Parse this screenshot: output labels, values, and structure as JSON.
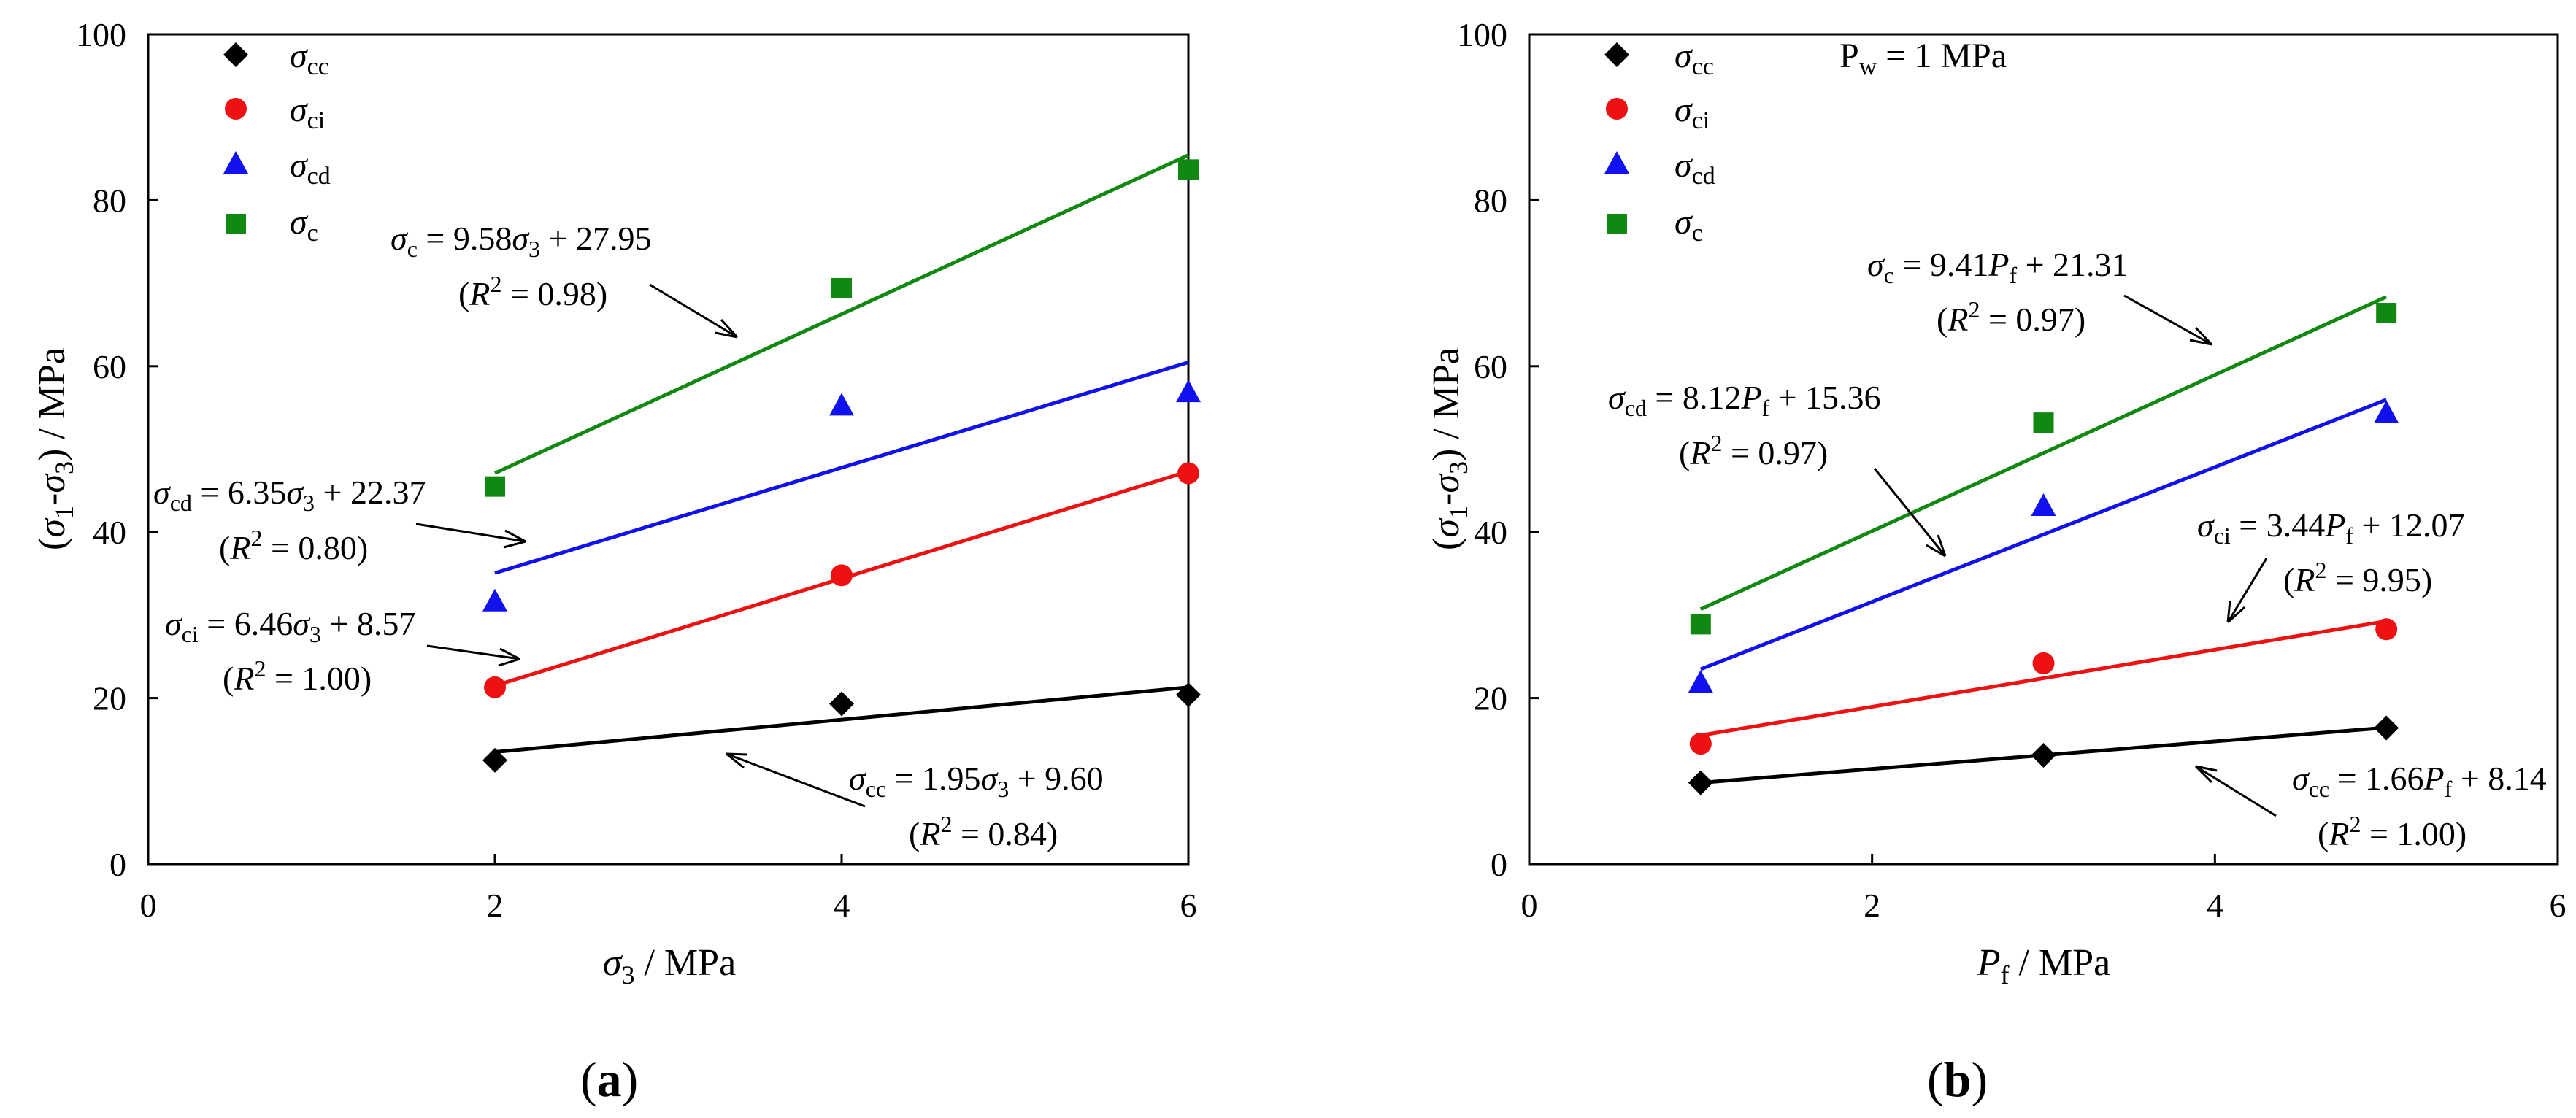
{
  "chart_data": [
    {
      "type": "scatter",
      "panel_label": "(a)",
      "xlabel": "σ3 / MPa",
      "ylabel": "(σ1-σ3) / MPa",
      "xlim": [
        0,
        6
      ],
      "ylim": [
        0,
        100
      ],
      "xticks": [
        0,
        2,
        4,
        6
      ],
      "yticks": [
        0,
        20,
        40,
        60,
        80,
        100
      ],
      "note": "",
      "legend_position": "top-left",
      "series": [
        {
          "key": "cc",
          "name": "σcc",
          "marker": "diamond",
          "color": "#000000",
          "x": [
            2,
            4,
            6
          ],
          "y": [
            12.5,
            19.3,
            20.4
          ],
          "fit": {
            "slope": 1.95,
            "intercept": 9.6,
            "x_range": [
              2,
              6
            ]
          },
          "equation": "σcc = 1.95σ3 + 9.60",
          "r2": "(R2 = 0.84)"
        },
        {
          "key": "ci",
          "name": "σci",
          "marker": "circle",
          "color": "#ee1111",
          "x": [
            2,
            4,
            6
          ],
          "y": [
            21.3,
            34.8,
            47.1
          ],
          "fit": {
            "slope": 6.46,
            "intercept": 8.57,
            "x_range": [
              2,
              6
            ]
          },
          "equation": "σci = 6.46σ3 + 8.57",
          "r2": "(R2 = 1.00)"
        },
        {
          "key": "cd",
          "name": "σcd",
          "marker": "triangle",
          "color": "#1111ee",
          "x": [
            2,
            4,
            6
          ],
          "y": [
            31.6,
            55.2,
            56.8
          ],
          "fit": {
            "slope": 6.35,
            "intercept": 22.37,
            "x_range": [
              2,
              6
            ]
          },
          "equation": "σcd = 6.35σ3 + 22.37",
          "r2": "(R2 = 0.80)"
        },
        {
          "key": "c",
          "name": "σc",
          "marker": "square",
          "color": "#118811",
          "x": [
            2,
            4,
            6
          ],
          "y": [
            45.5,
            69.4,
            83.7
          ],
          "fit": {
            "slope": 9.58,
            "intercept": 27.95,
            "x_range": [
              2,
              6
            ]
          },
          "equation": "σc = 9.58σ3 + 27.95",
          "r2": "(R2 = 0.98)"
        }
      ]
    },
    {
      "type": "scatter",
      "panel_label": "(b)",
      "xlabel": "Pf / MPa",
      "ylabel": "(σ1-σ3) / MPa",
      "xlim": [
        0,
        6
      ],
      "ylim": [
        0,
        100
      ],
      "xticks": [
        0,
        2,
        4,
        6
      ],
      "yticks": [
        0,
        20,
        40,
        60,
        80,
        100
      ],
      "note": "Pw = 1 MPa",
      "legend_position": "top-left",
      "series": [
        {
          "key": "cc",
          "name": "σcc",
          "marker": "diamond",
          "color": "#000000",
          "x": [
            1,
            3,
            5
          ],
          "y": [
            9.8,
            13.1,
            16.4
          ],
          "fit": {
            "slope": 1.66,
            "intercept": 8.14,
            "x_range": [
              1,
              5
            ]
          },
          "equation": "σcc = 1.66Pf + 8.14",
          "r2": "(R2 = 1.00)"
        },
        {
          "key": "ci",
          "name": "σci",
          "marker": "circle",
          "color": "#ee1111",
          "x": [
            1,
            3,
            5
          ],
          "y": [
            14.5,
            24.2,
            28.3
          ],
          "fit": {
            "slope": 3.44,
            "intercept": 12.07,
            "x_range": [
              1,
              5
            ]
          },
          "equation": "σci = 3.44Pf + 12.07",
          "r2": "(R2 = 9.95)"
        },
        {
          "key": "cd",
          "name": "σcd",
          "marker": "triangle",
          "color": "#1111ee",
          "x": [
            1,
            3,
            5
          ],
          "y": [
            21.8,
            43.1,
            54.3
          ],
          "fit": {
            "slope": 8.12,
            "intercept": 15.36,
            "x_range": [
              1,
              5
            ]
          },
          "equation": "σcd = 8.12Pf + 15.36",
          "r2": "(R2 = 0.97)"
        },
        {
          "key": "c",
          "name": "σc",
          "marker": "square",
          "color": "#118811",
          "x": [
            1,
            3,
            5
          ],
          "y": [
            28.9,
            53.2,
            66.4
          ],
          "fit": {
            "slope": 9.41,
            "intercept": 21.31,
            "x_range": [
              1,
              5
            ]
          },
          "equation": "σc = 9.41Pf + 21.31",
          "r2": "(R2 = 0.97)"
        }
      ]
    }
  ]
}
